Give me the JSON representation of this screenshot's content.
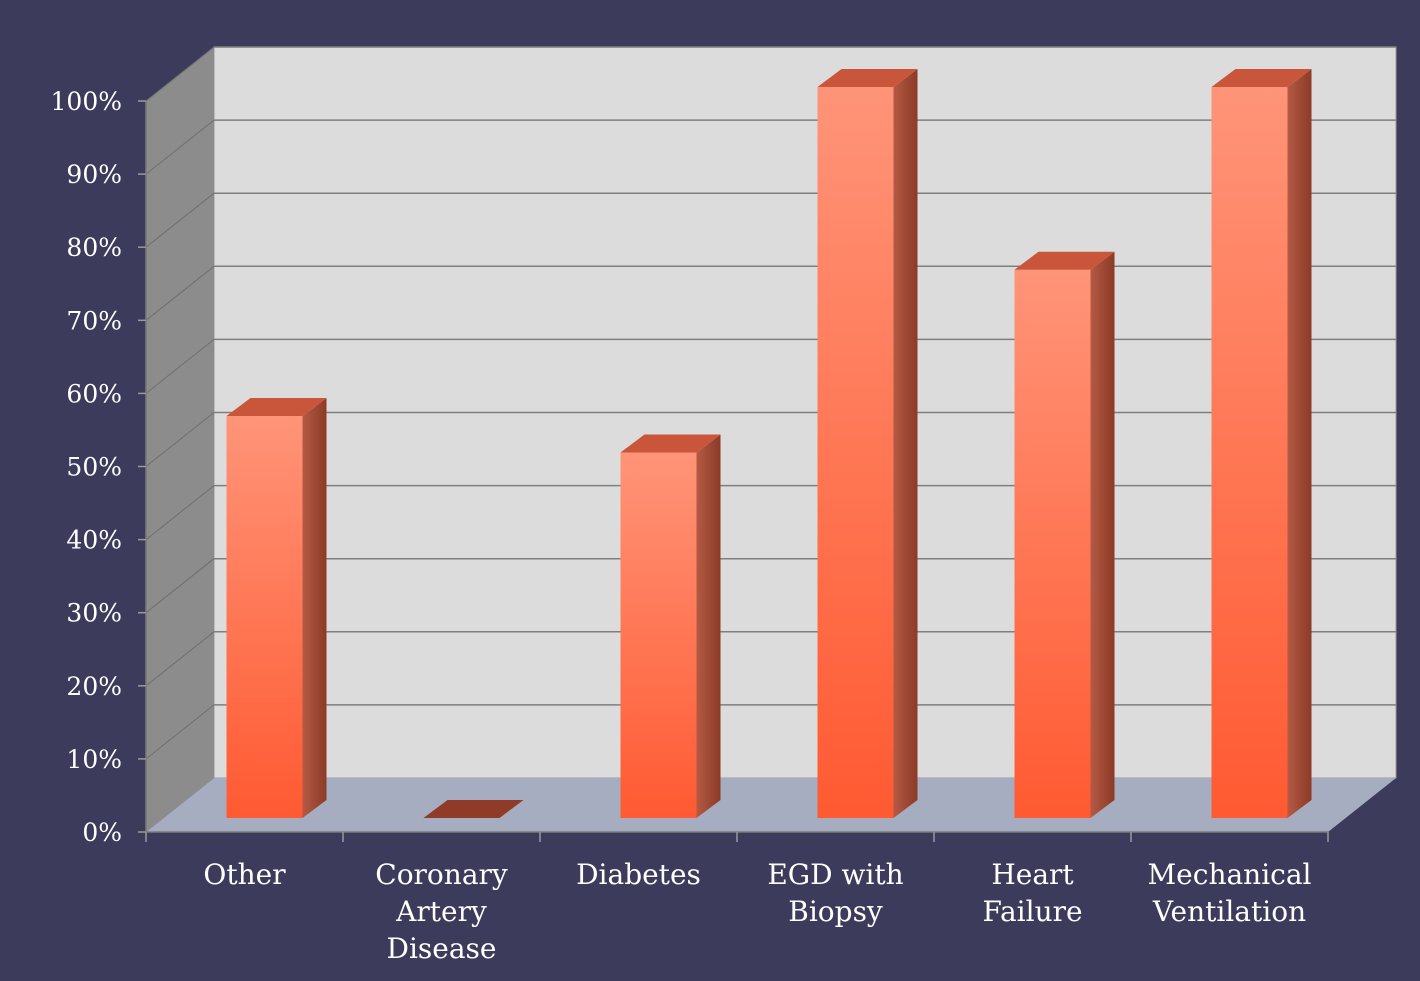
{
  "chart_data": {
    "type": "bar",
    "categories": [
      [
        "Other"
      ],
      [
        "Coronary",
        "Artery",
        "Disease"
      ],
      [
        "Diabetes"
      ],
      [
        "EGD with",
        "Biopsy"
      ],
      [
        "Heart",
        "Failure"
      ],
      [
        "Mechanical",
        "Ventilation"
      ]
    ],
    "values": [
      55,
      0,
      50,
      100,
      75,
      100
    ],
    "ylim": [
      0,
      100
    ],
    "yticks": [
      "0%",
      "10%",
      "20%",
      "30%",
      "40%",
      "50%",
      "60%",
      "70%",
      "80%",
      "90%",
      "100%"
    ],
    "grid": true,
    "colors": {
      "background": "#3d3b5c",
      "back_wall": "#dcdcdc",
      "side_wall": "#8c8c8c",
      "floor": "#a6adc0",
      "gridline": "#7f7f7f",
      "bar_front_light": "#ff9478",
      "bar_front_dark": "#ff5a32",
      "bar_side": "#a64a33",
      "bar_top": "#c9563b",
      "axis_text": "#ffffff"
    }
  }
}
